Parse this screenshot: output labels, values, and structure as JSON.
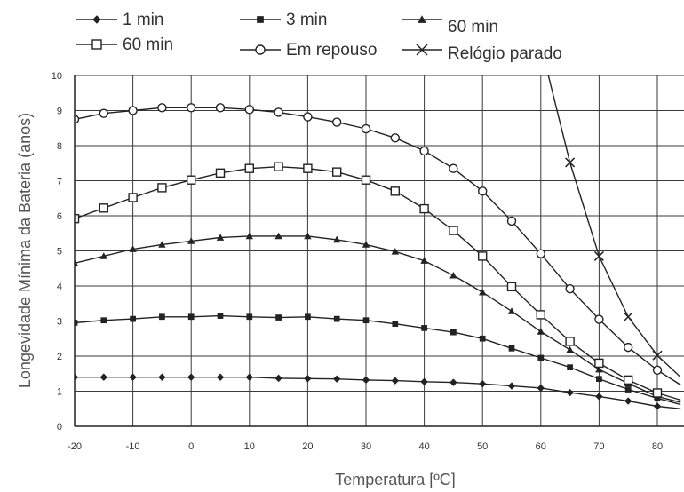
{
  "chart_data": {
    "type": "line",
    "title": "",
    "xlabel": "Temperatura [ºC]",
    "ylabel": "Longevidade Mínima da Bateria (anos)",
    "xlim": [
      -20,
      80
    ],
    "ylim": [
      0,
      10
    ],
    "x_ticks": [
      -20,
      -10,
      0,
      10,
      20,
      30,
      40,
      50,
      60,
      70,
      80
    ],
    "x_tick_labels": [
      "-20",
      "-10",
      "0",
      "10",
      "20",
      "30",
      "40",
      "50",
      "60",
      "70",
      "80"
    ],
    "y_ticks": [
      0,
      1,
      2,
      3,
      4,
      5,
      6,
      7,
      8,
      9,
      10
    ],
    "y_tick_labels": [
      "0",
      "1",
      "2",
      "3",
      "4",
      "5",
      "6",
      "7",
      "8",
      "9",
      "10"
    ],
    "grid": true,
    "legend_position": "top",
    "series": [
      {
        "name": "1 min",
        "marker": "diamond",
        "color": "#222222",
        "points": [
          [
            -20,
            1.4
          ],
          [
            -15,
            1.4
          ],
          [
            -10,
            1.4
          ],
          [
            -5,
            1.4
          ],
          [
            0,
            1.4
          ],
          [
            5,
            1.4
          ],
          [
            10,
            1.4
          ],
          [
            15,
            1.37
          ],
          [
            20,
            1.36
          ],
          [
            25,
            1.35
          ],
          [
            30,
            1.32
          ],
          [
            35,
            1.3
          ],
          [
            40,
            1.27
          ],
          [
            45,
            1.25
          ],
          [
            50,
            1.21
          ],
          [
            55,
            1.15
          ],
          [
            60,
            1.09
          ],
          [
            65,
            0.96
          ],
          [
            70,
            0.85
          ],
          [
            75,
            0.72
          ],
          [
            80,
            0.57
          ],
          [
            84,
            0.5
          ]
        ]
      },
      {
        "name": "3 min",
        "marker": "square-filled",
        "color": "#222222",
        "points": [
          [
            -20,
            2.95
          ],
          [
            -15,
            3.02
          ],
          [
            -10,
            3.06
          ],
          [
            -5,
            3.12
          ],
          [
            0,
            3.12
          ],
          [
            5,
            3.15
          ],
          [
            10,
            3.12
          ],
          [
            15,
            3.1
          ],
          [
            20,
            3.12
          ],
          [
            25,
            3.06
          ],
          [
            30,
            3.02
          ],
          [
            35,
            2.92
          ],
          [
            40,
            2.8
          ],
          [
            45,
            2.68
          ],
          [
            50,
            2.5
          ],
          [
            55,
            2.22
          ],
          [
            60,
            1.95
          ],
          [
            65,
            1.68
          ],
          [
            70,
            1.35
          ],
          [
            75,
            1.05
          ],
          [
            80,
            0.8
          ],
          [
            84,
            0.62
          ]
        ]
      },
      {
        "name": "60 min",
        "marker": "triangle-filled",
        "color": "#222222",
        "points": [
          [
            -20,
            4.65
          ],
          [
            -15,
            4.85
          ],
          [
            -10,
            5.05
          ],
          [
            -5,
            5.18
          ],
          [
            0,
            5.28
          ],
          [
            5,
            5.38
          ],
          [
            10,
            5.42
          ],
          [
            15,
            5.42
          ],
          [
            20,
            5.42
          ],
          [
            25,
            5.32
          ],
          [
            30,
            5.18
          ],
          [
            35,
            4.98
          ],
          [
            40,
            4.72
          ],
          [
            45,
            4.3
          ],
          [
            50,
            3.82
          ],
          [
            55,
            3.28
          ],
          [
            60,
            2.7
          ],
          [
            65,
            2.18
          ],
          [
            70,
            1.62
          ],
          [
            75,
            1.22
          ],
          [
            80,
            0.85
          ],
          [
            84,
            0.68
          ]
        ]
      },
      {
        "name": "60 min",
        "marker": "square-open",
        "color": "#222222",
        "points": [
          [
            -20,
            5.92
          ],
          [
            -15,
            6.22
          ],
          [
            -10,
            6.52
          ],
          [
            -5,
            6.8
          ],
          [
            0,
            7.02
          ],
          [
            5,
            7.22
          ],
          [
            10,
            7.35
          ],
          [
            15,
            7.4
          ],
          [
            20,
            7.35
          ],
          [
            25,
            7.25
          ],
          [
            30,
            7.02
          ],
          [
            35,
            6.7
          ],
          [
            40,
            6.2
          ],
          [
            45,
            5.58
          ],
          [
            50,
            4.85
          ],
          [
            55,
            3.98
          ],
          [
            60,
            3.18
          ],
          [
            65,
            2.42
          ],
          [
            70,
            1.8
          ],
          [
            75,
            1.32
          ],
          [
            80,
            0.95
          ],
          [
            84,
            0.75
          ]
        ]
      },
      {
        "name": "Em repouso",
        "marker": "circle-open",
        "color": "#222222",
        "points": [
          [
            -20,
            8.75
          ],
          [
            -15,
            8.92
          ],
          [
            -10,
            9.0
          ],
          [
            -5,
            9.08
          ],
          [
            0,
            9.08
          ],
          [
            5,
            9.08
          ],
          [
            10,
            9.03
          ],
          [
            15,
            8.95
          ],
          [
            20,
            8.82
          ],
          [
            25,
            8.67
          ],
          [
            30,
            8.48
          ],
          [
            35,
            8.22
          ],
          [
            40,
            7.85
          ],
          [
            45,
            7.35
          ],
          [
            50,
            6.7
          ],
          [
            55,
            5.85
          ],
          [
            60,
            4.92
          ],
          [
            65,
            3.92
          ],
          [
            70,
            3.05
          ],
          [
            75,
            2.25
          ],
          [
            80,
            1.6
          ],
          [
            84,
            1.18
          ]
        ]
      },
      {
        "name": "Relógio parado",
        "marker": "x",
        "color": "#222222",
        "points": [
          [
            61.3,
            10.0
          ],
          [
            65,
            7.52
          ],
          [
            70,
            4.85
          ],
          [
            75,
            3.12
          ],
          [
            80,
            2.02
          ],
          [
            84,
            1.4
          ]
        ]
      }
    ],
    "legend": [
      {
        "label": "1 min",
        "marker": "diamond"
      },
      {
        "label": "3 min",
        "marker": "square-filled"
      },
      {
        "label": "60 min",
        "marker": "triangle-filled"
      },
      {
        "label": "60 min",
        "marker": "square-open"
      },
      {
        "label": "Em repouso",
        "marker": "circle-open"
      },
      {
        "label": "Relógio parado",
        "marker": "x"
      }
    ]
  }
}
